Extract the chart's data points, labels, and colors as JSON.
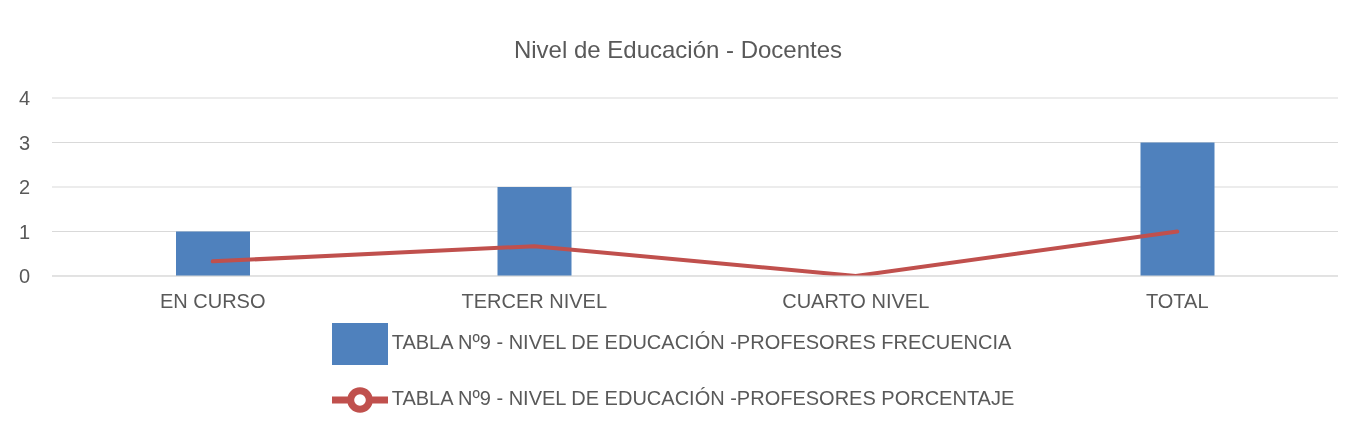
{
  "chart_data": {
    "type": "bar",
    "title": "Nivel de Educación - Docentes",
    "categories": [
      "EN CURSO",
      "TERCER NIVEL",
      "CUARTO NIVEL",
      "TOTAL"
    ],
    "series": [
      {
        "name": "TABLA Nº9 - NIVEL DE EDUCACIÓN -PROFESORES FRECUENCIA",
        "color": "#4f81bd",
        "values": [
          1,
          2,
          0,
          3
        ]
      },
      {
        "name": "TABLA Nº9 - NIVEL DE EDUCACIÓN -PROFESORES PORCENTAJE",
        "type": "line",
        "color": "#c0504d",
        "values": [
          0.33,
          0.67,
          0,
          1
        ]
      }
    ],
    "ylim": [
      0,
      4
    ],
    "yticks": [
      0,
      1,
      2,
      3,
      4
    ],
    "grid": "y",
    "legend": "bottom",
    "marker": "none",
    "line_style": "solid"
  }
}
